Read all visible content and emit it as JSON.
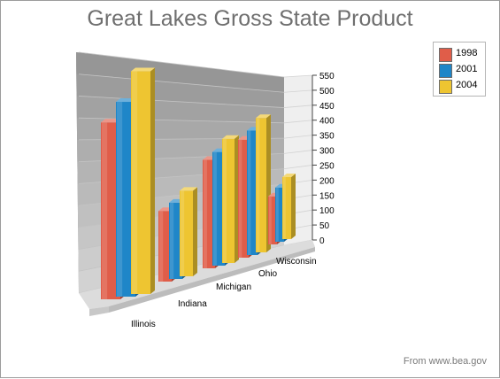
{
  "chart_data": {
    "type": "bar",
    "title": "Great Lakes Gross State Product",
    "categories": [
      "Illinois",
      "Indiana",
      "Michigan",
      "Ohio",
      "Wisconsin"
    ],
    "series": [
      {
        "name": "1998",
        "color": "#e05d49",
        "values": [
          425,
          190,
          310,
          360,
          155
        ]
      },
      {
        "name": "2001",
        "color": "#1f86c8",
        "values": [
          468,
          205,
          325,
          380,
          175
        ]
      },
      {
        "name": "2004",
        "color": "#eec531",
        "values": [
          535,
          230,
          355,
          410,
          200
        ]
      }
    ],
    "ylim": [
      0,
      550
    ],
    "yticks": [
      0,
      50,
      100,
      150,
      200,
      250,
      300,
      350,
      400,
      450,
      500,
      550
    ],
    "grid": true,
    "legend_position": "top-right",
    "three_d": true
  },
  "source": "From www.bea.gov"
}
